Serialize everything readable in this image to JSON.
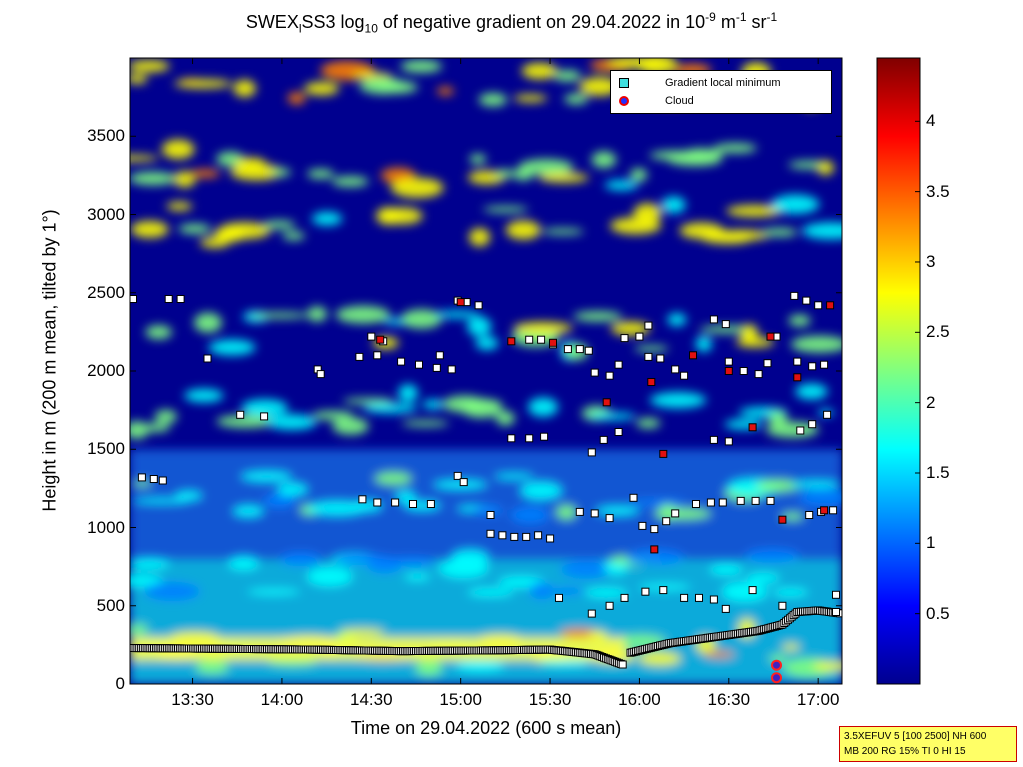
{
  "title": {
    "prefix": "SWEX",
    "sub1": "l",
    "mid": "SS3 log",
    "sub2": "10",
    "rest": " of negative gradient on 29.04.2022 in 10",
    "sup1": "-9",
    "unit1": " m",
    "sup2": "-1",
    "unit2": " sr",
    "sup3": "-1"
  },
  "axes": {
    "xlabel": "Time on 29.04.2022 (600 s mean)",
    "ylabel": "Height in m (200 m mean, tilted by 1°)"
  },
  "legend": {
    "item1": "Gradient local minimum",
    "item2": "Cloud"
  },
  "info": {
    "line1": "3.5XEFUV 5 [100 2500] NH 600",
    "line2": "MB 200 RG 15% TI 0 HI 15"
  },
  "colors": {
    "colormap": [
      "#00008f",
      "#0000ff",
      "#0080ff",
      "#00ffff",
      "#80ff80",
      "#ffff00",
      "#ff8000",
      "#ff0000",
      "#800000"
    ],
    "marker_fill": "#ffffff",
    "marker_edge": "#000000",
    "cloud_fill": "#4020c0",
    "cloud_edge": "#ff2020"
  },
  "chart_data": {
    "type": "heatmap",
    "x_ticks": [
      "13:30",
      "14:00",
      "14:30",
      "15:00",
      "15:30",
      "16:00",
      "16:30",
      "17:00"
    ],
    "x_tick_minutes": [
      810,
      840,
      870,
      900,
      930,
      960,
      990,
      1020
    ],
    "xlim_minutes": [
      789,
      1028
    ],
    "y_ticks": [
      "0",
      "500",
      "1000",
      "1500",
      "2000",
      "2500",
      "3000",
      "3500"
    ],
    "y_tick_values": [
      0,
      500,
      1000,
      1500,
      2000,
      2500,
      3000,
      3500
    ],
    "ylim": [
      0,
      4000
    ],
    "colorbar_ticks": [
      "0.5",
      "1",
      "1.5",
      "2",
      "2.5",
      "3",
      "3.5",
      "4"
    ],
    "colorbar_values": [
      0.5,
      1,
      1.5,
      2,
      2.5,
      3,
      3.5,
      4
    ],
    "clim": [
      0,
      4.45
    ],
    "layers": [
      {
        "height": 3850,
        "value": 3.0
      },
      {
        "height": 3300,
        "value": 2.7
      },
      {
        "height": 2950,
        "value": 2.6
      },
      {
        "height": 2250,
        "value": 2.2
      },
      {
        "height": 1750,
        "value": 2.0
      },
      {
        "height": 1200,
        "value": 1.8
      },
      {
        "height": 700,
        "value": 1.7
      },
      {
        "height": 230,
        "value": 2.6
      }
    ],
    "gradient_minima": [
      {
        "t": 790,
        "h": 2460
      },
      {
        "t": 802,
        "h": 2460
      },
      {
        "t": 806,
        "h": 2460
      },
      {
        "t": 793,
        "h": 1320
      },
      {
        "t": 797,
        "h": 1310
      },
      {
        "t": 800,
        "h": 1300
      },
      {
        "t": 815,
        "h": 2080
      },
      {
        "t": 826,
        "h": 1720
      },
      {
        "t": 834,
        "h": 1710
      },
      {
        "t": 852,
        "h": 2010
      },
      {
        "t": 853,
        "h": 1980
      },
      {
        "t": 866,
        "h": 2090
      },
      {
        "t": 870,
        "h": 2220
      },
      {
        "t": 874,
        "h": 2190
      },
      {
        "t": 872,
        "h": 2100
      },
      {
        "t": 880,
        "h": 2060
      },
      {
        "t": 886,
        "h": 2040
      },
      {
        "t": 892,
        "h": 2020
      },
      {
        "t": 897,
        "h": 2010
      },
      {
        "t": 893,
        "h": 2100
      },
      {
        "t": 899,
        "h": 2450
      },
      {
        "t": 902,
        "h": 2440
      },
      {
        "t": 906,
        "h": 2420
      },
      {
        "t": 899,
        "h": 1330
      },
      {
        "t": 901,
        "h": 1290
      },
      {
        "t": 867,
        "h": 1180
      },
      {
        "t": 872,
        "h": 1160
      },
      {
        "t": 878,
        "h": 1160
      },
      {
        "t": 884,
        "h": 1150
      },
      {
        "t": 890,
        "h": 1150
      },
      {
        "t": 910,
        "h": 960
      },
      {
        "t": 914,
        "h": 950
      },
      {
        "t": 918,
        "h": 940
      },
      {
        "t": 922,
        "h": 940
      },
      {
        "t": 926,
        "h": 950
      },
      {
        "t": 930,
        "h": 930
      },
      {
        "t": 917,
        "h": 1570
      },
      {
        "t": 923,
        "h": 1570
      },
      {
        "t": 928,
        "h": 1580
      },
      {
        "t": 923,
        "h": 2200
      },
      {
        "t": 927,
        "h": 2200
      },
      {
        "t": 931,
        "h": 2170
      },
      {
        "t": 936,
        "h": 2140
      },
      {
        "t": 940,
        "h": 2140
      },
      {
        "t": 943,
        "h": 2130
      },
      {
        "t": 945,
        "h": 1990
      },
      {
        "t": 950,
        "h": 1970
      },
      {
        "t": 953,
        "h": 2040
      },
      {
        "t": 940,
        "h": 1100
      },
      {
        "t": 945,
        "h": 1090
      },
      {
        "t": 950,
        "h": 1060
      },
      {
        "t": 944,
        "h": 1480
      },
      {
        "t": 948,
        "h": 1560
      },
      {
        "t": 953,
        "h": 1610
      },
      {
        "t": 955,
        "h": 2210
      },
      {
        "t": 960,
        "h": 2220
      },
      {
        "t": 963,
        "h": 2290
      },
      {
        "t": 961,
        "h": 1010
      },
      {
        "t": 965,
        "h": 990
      },
      {
        "t": 969,
        "h": 1040
      },
      {
        "t": 972,
        "h": 1090
      },
      {
        "t": 958,
        "h": 1190
      },
      {
        "t": 963,
        "h": 2090
      },
      {
        "t": 967,
        "h": 2080
      },
      {
        "t": 972,
        "h": 2010
      },
      {
        "t": 975,
        "h": 1970
      },
      {
        "t": 985,
        "h": 2330
      },
      {
        "t": 989,
        "h": 2300
      },
      {
        "t": 979,
        "h": 1150
      },
      {
        "t": 984,
        "h": 1160
      },
      {
        "t": 988,
        "h": 1160
      },
      {
        "t": 994,
        "h": 1170
      },
      {
        "t": 999,
        "h": 1170
      },
      {
        "t": 1004,
        "h": 1170
      },
      {
        "t": 985,
        "h": 1560
      },
      {
        "t": 990,
        "h": 1550
      },
      {
        "t": 990,
        "h": 2060
      },
      {
        "t": 995,
        "h": 2000
      },
      {
        "t": 1000,
        "h": 1980
      },
      {
        "t": 1003,
        "h": 2050
      },
      {
        "t": 1006,
        "h": 2220
      },
      {
        "t": 1012,
        "h": 2480
      },
      {
        "t": 1016,
        "h": 2450
      },
      {
        "t": 1020,
        "h": 2420
      },
      {
        "t": 1013,
        "h": 2060
      },
      {
        "t": 1018,
        "h": 2030
      },
      {
        "t": 1022,
        "h": 2040
      },
      {
        "t": 1014,
        "h": 1620
      },
      {
        "t": 1018,
        "h": 1660
      },
      {
        "t": 1023,
        "h": 1720
      },
      {
        "t": 1017,
        "h": 1080
      },
      {
        "t": 1021,
        "h": 1100
      },
      {
        "t": 1025,
        "h": 1110
      },
      {
        "t": 944,
        "h": 450
      },
      {
        "t": 950,
        "h": 500
      },
      {
        "t": 955,
        "h": 550
      },
      {
        "t": 962,
        "h": 590
      },
      {
        "t": 968,
        "h": 600
      },
      {
        "t": 975,
        "h": 550
      },
      {
        "t": 980,
        "h": 550
      },
      {
        "t": 985,
        "h": 540
      },
      {
        "t": 989,
        "h": 480
      },
      {
        "t": 998,
        "h": 600
      },
      {
        "t": 1008,
        "h": 500
      },
      {
        "t": 1026,
        "h": 570
      },
      {
        "t": 1026,
        "h": 460
      },
      {
        "t": 933,
        "h": 550
      },
      {
        "t": 910,
        "h": 1080
      }
    ],
    "surface_layer": [
      {
        "t": 789,
        "h": 230
      },
      {
        "t": 820,
        "h": 225
      },
      {
        "t": 850,
        "h": 220
      },
      {
        "t": 880,
        "h": 210
      },
      {
        "t": 910,
        "h": 215
      },
      {
        "t": 930,
        "h": 220
      },
      {
        "t": 945,
        "h": 190
      },
      {
        "t": 955,
        "h": 120
      }
    ],
    "rising_layer": [
      {
        "t": 957,
        "h": 200
      },
      {
        "t": 970,
        "h": 260
      },
      {
        "t": 985,
        "h": 300
      },
      {
        "t": 1000,
        "h": 340
      },
      {
        "t": 1008,
        "h": 380
      },
      {
        "t": 1013,
        "h": 460
      },
      {
        "t": 1020,
        "h": 470
      },
      {
        "t": 1028,
        "h": 450
      }
    ],
    "red_cells": [
      {
        "t": 873,
        "h": 2200
      },
      {
        "t": 900,
        "h": 2440
      },
      {
        "t": 917,
        "h": 2190
      },
      {
        "t": 931,
        "h": 2180
      },
      {
        "t": 949,
        "h": 1800
      },
      {
        "t": 964,
        "h": 1930
      },
      {
        "t": 968,
        "h": 1470
      },
      {
        "t": 978,
        "h": 2100
      },
      {
        "t": 990,
        "h": 2000
      },
      {
        "t": 998,
        "h": 1640
      },
      {
        "t": 1004,
        "h": 2220
      },
      {
        "t": 1013,
        "h": 1960
      },
      {
        "t": 1022,
        "h": 1110
      },
      {
        "t": 1024,
        "h": 2420
      },
      {
        "t": 965,
        "h": 860
      },
      {
        "t": 1008,
        "h": 1050
      }
    ],
    "clouds": [
      {
        "t": 1006,
        "h": 120
      },
      {
        "t": 1006,
        "h": 40
      }
    ]
  }
}
